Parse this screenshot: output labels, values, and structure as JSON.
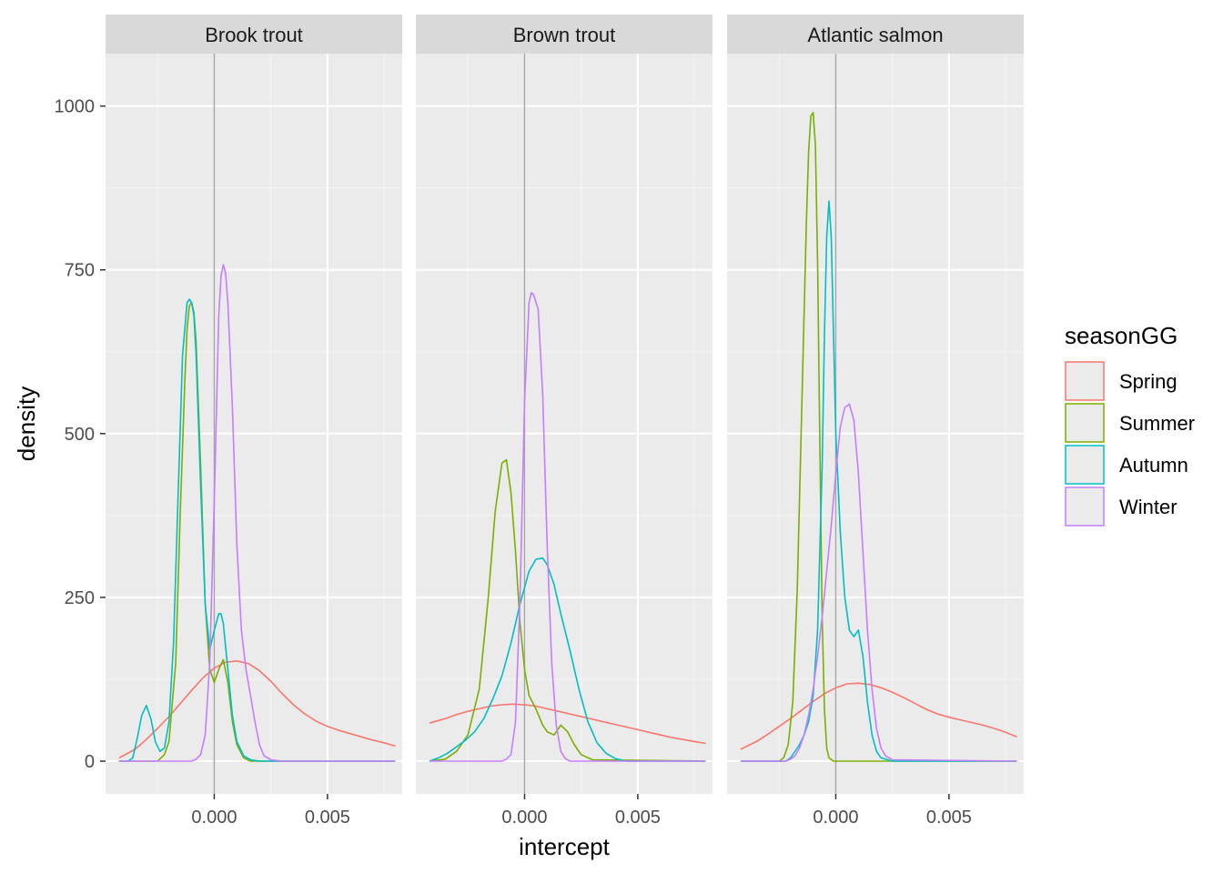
{
  "chart_data": {
    "type": "line",
    "subtype": "density",
    "xlabel": "intercept",
    "ylabel": "density",
    "xlim": [
      -0.0048,
      0.0083
    ],
    "ylim": [
      -50,
      1080
    ],
    "x_ticks": [
      0.0,
      0.005
    ],
    "x_tick_labels": [
      "0.000",
      "0.005"
    ],
    "y_ticks": [
      0,
      250,
      500,
      750,
      1000
    ],
    "y_tick_labels": [
      "0",
      "250",
      "500",
      "750",
      "1000"
    ],
    "vline": 0,
    "grid": true,
    "legend": {
      "title": "seasonGG",
      "position": "right",
      "entries": [
        "Spring",
        "Summer",
        "Autumn",
        "Winter"
      ]
    },
    "series_colors": {
      "Spring": "#F8766D",
      "Summer": "#7CAE00",
      "Autumn": "#00BFC4",
      "Winter": "#C77CFF"
    },
    "panels": [
      {
        "title": "Brook trout",
        "series": [
          {
            "name": "Spring",
            "x": [
              -0.0042,
              -0.0035,
              -0.003,
              -0.0025,
              -0.002,
              -0.0015,
              -0.001,
              -0.0005,
              0.0,
              0.0005,
              0.001,
              0.0015,
              0.002,
              0.0025,
              0.003,
              0.0035,
              0.004,
              0.0045,
              0.005,
              0.0055,
              0.006,
              0.0065,
              0.007,
              0.0075,
              0.008
            ],
            "y": [
              5,
              18,
              33,
              50,
              68,
              88,
              108,
              127,
              142,
              151,
              153,
              149,
              138,
              122,
              103,
              86,
              72,
              61,
              53,
              47,
              42,
              37,
              32,
              28,
              23
            ]
          },
          {
            "name": "Summer",
            "x": [
              -0.0042,
              -0.0025,
              -0.0022,
              -0.002,
              -0.0017,
              -0.0015,
              -0.0013,
              -0.0012,
              -0.0011,
              -0.001,
              -0.0009,
              -0.0008,
              -0.0006,
              -0.0004,
              -0.0002,
              0.0,
              0.0002,
              0.0004,
              0.0006,
              0.0008,
              0.001,
              0.0013,
              0.0016,
              0.002,
              0.008
            ],
            "y": [
              0,
              0,
              10,
              30,
              150,
              380,
              580,
              660,
              695,
              700,
              685,
              640,
              450,
              240,
              140,
              120,
              140,
              155,
              120,
              60,
              25,
              5,
              0,
              0,
              0
            ]
          },
          {
            "name": "Autumn",
            "x": [
              -0.0042,
              -0.0038,
              -0.0036,
              -0.0034,
              -0.0032,
              -0.003,
              -0.0028,
              -0.0026,
              -0.0024,
              -0.0022,
              -0.002,
              -0.0018,
              -0.0016,
              -0.0014,
              -0.0012,
              -0.0011,
              -0.001,
              -0.0009,
              -0.0008,
              -0.0006,
              -0.0004,
              -0.0002,
              0.0,
              0.0002,
              0.0003,
              0.0004,
              0.0006,
              0.0008,
              0.001,
              0.0013,
              0.0016,
              0.002,
              0.008
            ],
            "y": [
              0,
              0,
              5,
              35,
              70,
              85,
              65,
              30,
              15,
              20,
              60,
              180,
              400,
              620,
              700,
              705,
              700,
              680,
              620,
              420,
              240,
              170,
              200,
              225,
              225,
              210,
              140,
              70,
              30,
              8,
              2,
              0,
              0
            ]
          },
          {
            "name": "Winter",
            "x": [
              -0.0042,
              -0.001,
              -0.0008,
              -0.0006,
              -0.0004,
              -0.0002,
              0.0,
              0.0002,
              0.0003,
              0.0004,
              0.0005,
              0.0006,
              0.0008,
              0.001,
              0.0012,
              0.0014,
              0.0016,
              0.0018,
              0.002,
              0.0022,
              0.0025,
              0.003,
              0.008
            ],
            "y": [
              0,
              0,
              3,
              10,
              40,
              150,
              400,
              680,
              740,
              758,
              745,
              700,
              540,
              330,
              200,
              140,
              100,
              60,
              25,
              8,
              2,
              0,
              0
            ]
          }
        ]
      },
      {
        "title": "Brown trout",
        "series": [
          {
            "name": "Spring",
            "x": [
              -0.0042,
              -0.0035,
              -0.003,
              -0.0025,
              -0.002,
              -0.0015,
              -0.001,
              -0.0005,
              0.0,
              0.0005,
              0.001,
              0.0015,
              0.002,
              0.0025,
              0.003,
              0.0035,
              0.004,
              0.0045,
              0.005,
              0.0055,
              0.006,
              0.0065,
              0.007,
              0.0075,
              0.008
            ],
            "y": [
              58,
              65,
              71,
              76,
              80,
              84,
              86,
              87,
              86,
              84,
              80,
              76,
              72,
              68,
              64,
              60,
              56,
              52,
              48,
              44,
              40,
              36,
              33,
              30,
              27
            ]
          },
          {
            "name": "Summer",
            "x": [
              -0.0042,
              -0.0035,
              -0.003,
              -0.0025,
              -0.002,
              -0.0016,
              -0.0013,
              -0.001,
              -0.0008,
              -0.0006,
              -0.0004,
              -0.0002,
              0.0,
              0.0002,
              0.0005,
              0.0008,
              0.001,
              0.0013,
              0.0016,
              0.0019,
              0.0022,
              0.0025,
              0.003,
              0.008
            ],
            "y": [
              0,
              3,
              15,
              40,
              110,
              250,
              380,
              455,
              460,
              410,
              320,
              210,
              140,
              100,
              80,
              55,
              45,
              40,
              55,
              45,
              25,
              10,
              2,
              0
            ]
          },
          {
            "name": "Autumn",
            "x": [
              -0.0042,
              -0.0038,
              -0.0034,
              -0.003,
              -0.0026,
              -0.0022,
              -0.0018,
              -0.0014,
              -0.001,
              -0.0006,
              -0.0002,
              0.0002,
              0.0005,
              0.0008,
              0.001,
              0.0013,
              0.0016,
              0.002,
              0.0024,
              0.0028,
              0.0032,
              0.0036,
              0.004,
              0.0045,
              0.008
            ],
            "y": [
              0,
              5,
              12,
              22,
              32,
              45,
              65,
              95,
              130,
              180,
              240,
              290,
              308,
              310,
              300,
              270,
              225,
              170,
              110,
              60,
              28,
              12,
              4,
              0,
              0
            ]
          },
          {
            "name": "Winter",
            "x": [
              -0.0042,
              -0.001,
              -0.0008,
              -0.0006,
              -0.0004,
              -0.0002,
              0.0,
              0.0002,
              0.0003,
              0.0004,
              0.0006,
              0.0008,
              0.001,
              0.0012,
              0.0014,
              0.0016,
              0.0018,
              0.002,
              0.0025,
              0.008
            ],
            "y": [
              0,
              0,
              3,
              10,
              60,
              250,
              550,
              700,
              715,
              712,
              690,
              560,
              330,
              150,
              55,
              15,
              4,
              0,
              0,
              0
            ]
          }
        ]
      },
      {
        "title": "Atlantic salmon",
        "series": [
          {
            "name": "Spring",
            "x": [
              -0.0042,
              -0.0035,
              -0.003,
              -0.0025,
              -0.002,
              -0.0015,
              -0.001,
              -0.0005,
              0.0,
              0.0005,
              0.001,
              0.0015,
              0.002,
              0.0025,
              0.003,
              0.0035,
              0.004,
              0.0045,
              0.005,
              0.0055,
              0.006,
              0.0065,
              0.007,
              0.0075,
              0.008
            ],
            "y": [
              18,
              30,
              41,
              53,
              65,
              78,
              91,
              103,
              112,
              118,
              119,
              117,
              112,
              105,
              97,
              88,
              79,
              72,
              67,
              63,
              59,
              55,
              50,
              44,
              37
            ]
          },
          {
            "name": "Summer",
            "x": [
              -0.0042,
              -0.0025,
              -0.0023,
              -0.0021,
              -0.0019,
              -0.0017,
              -0.0015,
              -0.0013,
              -0.0012,
              -0.0011,
              -0.001,
              -0.0009,
              -0.0008,
              -0.0007,
              -0.0006,
              -0.0005,
              -0.0004,
              -0.0003,
              -0.0001,
              0.008
            ],
            "y": [
              0,
              0,
              5,
              25,
              90,
              260,
              540,
              820,
              930,
              985,
              990,
              940,
              760,
              480,
              220,
              80,
              20,
              5,
              0,
              0
            ]
          },
          {
            "name": "Autumn",
            "x": [
              -0.0042,
              -0.0022,
              -0.002,
              -0.0018,
              -0.0016,
              -0.0014,
              -0.0012,
              -0.001,
              -0.0008,
              -0.0006,
              -0.0005,
              -0.0004,
              -0.0003,
              -0.0002,
              -0.0001,
              0.0,
              0.0002,
              0.0004,
              0.0006,
              0.0008,
              0.001,
              0.0012,
              0.0014,
              0.0016,
              0.0018,
              0.002,
              0.0025,
              0.008
            ],
            "y": [
              0,
              0,
              5,
              15,
              25,
              40,
              60,
              100,
              200,
              450,
              650,
              800,
              855,
              800,
              650,
              500,
              350,
              250,
              200,
              190,
              200,
              160,
              90,
              40,
              15,
              5,
              0,
              0
            ]
          },
          {
            "name": "Winter",
            "x": [
              -0.0042,
              -0.0022,
              -0.002,
              -0.0018,
              -0.0016,
              -0.0014,
              -0.0012,
              -0.001,
              -0.0008,
              -0.0006,
              -0.0004,
              -0.0002,
              0.0,
              0.0002,
              0.0004,
              0.0006,
              0.0008,
              0.001,
              0.0012,
              0.0014,
              0.0016,
              0.0018,
              0.002,
              0.0022,
              0.0025,
              0.008
            ],
            "y": [
              0,
              0,
              3,
              8,
              20,
              40,
              70,
              110,
              160,
              220,
              290,
              360,
              440,
              510,
              540,
              545,
              520,
              440,
              320,
              200,
              110,
              50,
              20,
              8,
              2,
              0
            ]
          }
        ]
      }
    ]
  }
}
